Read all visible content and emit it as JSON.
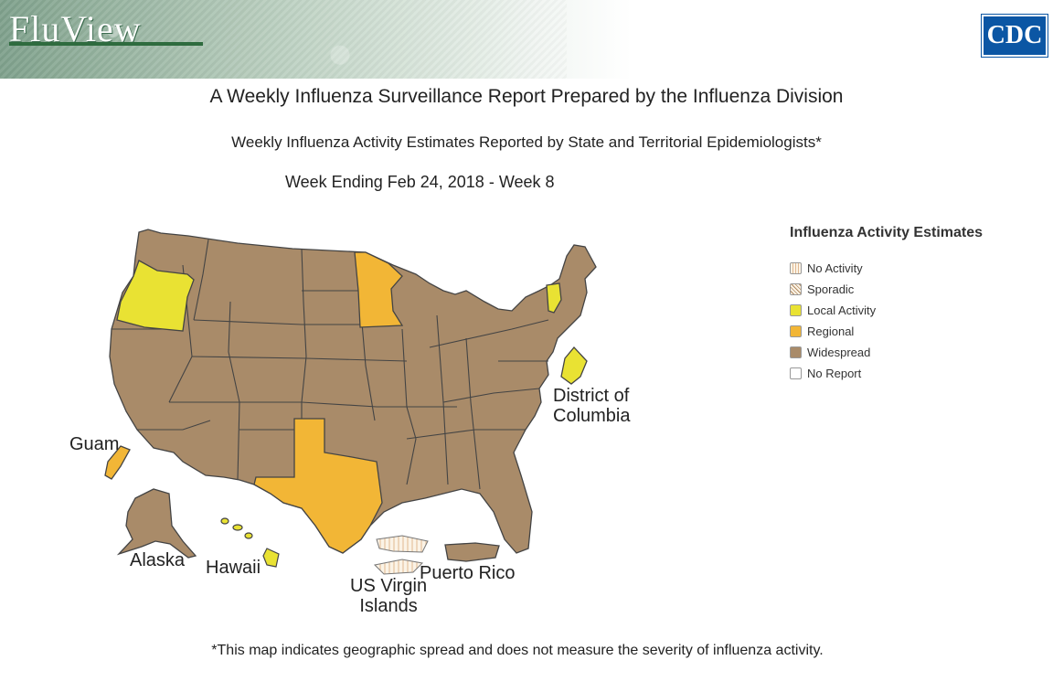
{
  "header": {
    "logo": "FluView",
    "agency": "CDC"
  },
  "titles": {
    "report": "A Weekly Influenza Surveillance Report Prepared by the Influenza Division",
    "subtitle": "Weekly Influenza Activity Estimates Reported by State and Territorial Epidemiologists*",
    "week": "Week Ending Feb 24, 2018 - Week 8"
  },
  "legend": {
    "title": "Influenza Activity Estimates",
    "items": [
      {
        "label": "No Activity",
        "color": "#fbf3e6",
        "pattern": "vertical-lines"
      },
      {
        "label": "Sporadic",
        "color": "#fbf3e6",
        "pattern": "crosshatch"
      },
      {
        "label": "Local Activity",
        "color": "#e9e233",
        "pattern": "solid"
      },
      {
        "label": "Regional",
        "color": "#f2b636",
        "pattern": "solid"
      },
      {
        "label": "Widespread",
        "color": "#a98b69",
        "pattern": "solid"
      },
      {
        "label": "No Report",
        "color": "#ffffff",
        "pattern": "solid"
      }
    ]
  },
  "map_labels": {
    "dc": [
      "District of",
      "Columbia"
    ],
    "guam": "Guam",
    "alaska": "Alaska",
    "hawaii": "Hawaii",
    "usvi": [
      "US Virgin",
      "Islands"
    ],
    "puerto_rico": "Puerto Rico"
  },
  "regions": {
    "widespread": [
      "Contiguous U.S. (most states)",
      "Alaska",
      "Puerto Rico"
    ],
    "regional": [
      "Minnesota",
      "Texas",
      "Guam"
    ],
    "local": [
      "Oregon",
      "Vermont",
      "District of Columbia",
      "Hawaii"
    ],
    "no_activity": [
      "US Virgin Islands"
    ]
  },
  "footnote": "*This map indicates geographic spread and does not measure the severity of influenza activity."
}
